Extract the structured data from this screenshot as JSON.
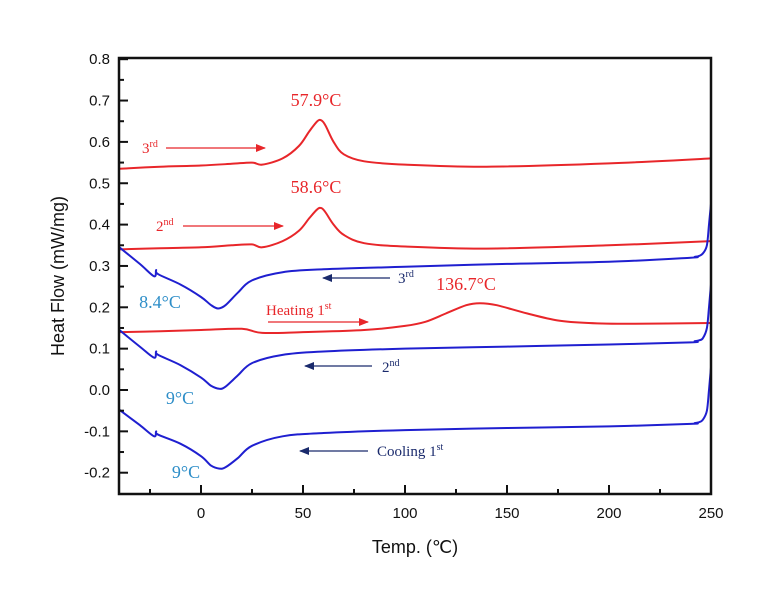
{
  "chart_data": {
    "type": "line",
    "title": "",
    "xlabel": "Temp. (℃)",
    "ylabel": "Heat Flow (mW/mg)",
    "xlim": [
      -40,
      250
    ],
    "ylim": [
      -0.25,
      0.8
    ],
    "xticks": [
      "0",
      "50",
      "100",
      "150",
      "200",
      "250"
    ],
    "xtick_values": [
      0,
      50,
      100,
      150,
      200,
      250
    ],
    "yticks": [
      "0.8",
      "0.7",
      "0.6",
      "0.5",
      "0.4",
      "0.3",
      "0.2",
      "0.1",
      "0.0",
      "-0.1",
      "-0.2"
    ],
    "ytick_values": [
      0.8,
      0.7,
      0.6,
      0.5,
      0.4,
      0.3,
      0.2,
      0.1,
      0.0,
      -0.1,
      -0.2
    ],
    "grid": false,
    "colors": {
      "heating": "#e8262a",
      "cooling": "#1f1fd0",
      "cooling_label": "#1a2a6c",
      "cooling_peak": "#2e8ec8"
    },
    "series": [
      {
        "name": "Heating 3rd",
        "color": "#e8262a",
        "x": [
          -40,
          -20,
          0,
          15,
          25,
          30,
          40,
          48,
          53,
          57,
          59,
          61,
          65,
          70,
          80,
          100,
          140,
          200,
          250
        ],
        "y": [
          0.535,
          0.54,
          0.543,
          0.547,
          0.55,
          0.545,
          0.56,
          0.59,
          0.625,
          0.65,
          0.652,
          0.64,
          0.6,
          0.57,
          0.553,
          0.545,
          0.54,
          0.548,
          0.56
        ]
      },
      {
        "name": "Heating 2nd",
        "color": "#e8262a",
        "x": [
          -40,
          -20,
          0,
          15,
          25,
          30,
          40,
          48,
          53,
          57,
          59,
          61,
          65,
          70,
          80,
          100,
          140,
          200,
          250
        ],
        "y": [
          0.34,
          0.343,
          0.345,
          0.35,
          0.352,
          0.345,
          0.36,
          0.385,
          0.415,
          0.437,
          0.44,
          0.43,
          0.4,
          0.375,
          0.355,
          0.347,
          0.342,
          0.35,
          0.36
        ]
      },
      {
        "name": "Heating 1st",
        "color": "#e8262a",
        "x": [
          -40,
          -20,
          0,
          20,
          30,
          50,
          80,
          100,
          110,
          120,
          130,
          136.7,
          145,
          160,
          175,
          190,
          210,
          250
        ],
        "y": [
          0.14,
          0.142,
          0.145,
          0.148,
          0.138,
          0.14,
          0.145,
          0.155,
          0.165,
          0.185,
          0.205,
          0.21,
          0.205,
          0.185,
          0.168,
          0.162,
          0.16,
          0.162
        ]
      },
      {
        "name": "Cooling 3rd",
        "color": "#1f1fd0",
        "x": [
          250,
          249,
          248,
          246,
          244,
          242,
          240,
          200,
          150,
          100,
          60,
          40,
          25,
          18,
          12,
          8.4,
          5,
          0,
          -10,
          -21,
          -22,
          -23,
          -30,
          -40
        ],
        "y": [
          0.45,
          0.4,
          0.35,
          0.33,
          0.324,
          0.322,
          0.32,
          0.31,
          0.305,
          0.298,
          0.292,
          0.285,
          0.265,
          0.235,
          0.205,
          0.197,
          0.205,
          0.225,
          0.255,
          0.28,
          0.29,
          0.275,
          0.305,
          0.345
        ]
      },
      {
        "name": "Cooling 2nd",
        "color": "#1f1fd0",
        "x": [
          250,
          249,
          248,
          246,
          244,
          242,
          240,
          200,
          150,
          100,
          60,
          40,
          25,
          18,
          12,
          9,
          5,
          0,
          -10,
          -21,
          -22,
          -23,
          -30,
          -40
        ],
        "y": [
          0.255,
          0.2,
          0.15,
          0.125,
          0.12,
          0.118,
          0.115,
          0.11,
          0.105,
          0.1,
          0.093,
          0.085,
          0.065,
          0.035,
          0.008,
          0.003,
          0.01,
          0.03,
          0.06,
          0.085,
          0.093,
          0.078,
          0.105,
          0.145
        ]
      },
      {
        "name": "Cooling 1st",
        "color": "#1f1fd0",
        "x": [
          250,
          249,
          248,
          246,
          244,
          242,
          240,
          200,
          150,
          100,
          60,
          40,
          25,
          18,
          12,
          9,
          5,
          0,
          -10,
          -21,
          -22,
          -23,
          -30,
          -40
        ],
        "y": [
          0.055,
          0.0,
          -0.05,
          -0.072,
          -0.078,
          -0.08,
          -0.082,
          -0.088,
          -0.092,
          -0.097,
          -0.104,
          -0.112,
          -0.135,
          -0.165,
          -0.187,
          -0.19,
          -0.183,
          -0.16,
          -0.13,
          -0.108,
          -0.1,
          -0.112,
          -0.085,
          -0.048
        ]
      }
    ],
    "annotations": [
      {
        "id": "peak3h",
        "text": "57.9°C",
        "x": 57.9,
        "y": 0.652,
        "color": "#e8262a"
      },
      {
        "id": "peak2h",
        "text": "58.6°C",
        "x": 58.6,
        "y": 0.44,
        "color": "#e8262a"
      },
      {
        "id": "peak1h",
        "text": "136.7°C",
        "x": 136.7,
        "y": 0.21,
        "color": "#e8262a"
      },
      {
        "id": "peak3c",
        "text": "8.4°C",
        "x": 8.4,
        "y": 0.197,
        "color": "#2e8ec8"
      },
      {
        "id": "peak2c",
        "text": "9°C",
        "x": 9,
        "y": 0.003,
        "color": "#2e8ec8"
      },
      {
        "id": "peak1c",
        "text": "9°C",
        "x": 9,
        "y": -0.19,
        "color": "#2e8ec8"
      }
    ],
    "run_labels": [
      {
        "id": "h3",
        "text": "3",
        "sup": "rd",
        "color": "#e8262a",
        "direction": "right"
      },
      {
        "id": "h2",
        "text": "2",
        "sup": "nd",
        "color": "#e8262a",
        "direction": "right"
      },
      {
        "id": "h1",
        "text": "Heating 1",
        "sup": "st",
        "color": "#e8262a",
        "direction": "right"
      },
      {
        "id": "c3",
        "text": "3",
        "sup": "rd",
        "color": "#1a2a6c",
        "direction": "left"
      },
      {
        "id": "c2",
        "text": "2",
        "sup": "nd",
        "color": "#1a2a6c",
        "direction": "left"
      },
      {
        "id": "c1",
        "text": "Cooling 1",
        "sup": "st",
        "color": "#1a2a6c",
        "direction": "left"
      }
    ]
  }
}
